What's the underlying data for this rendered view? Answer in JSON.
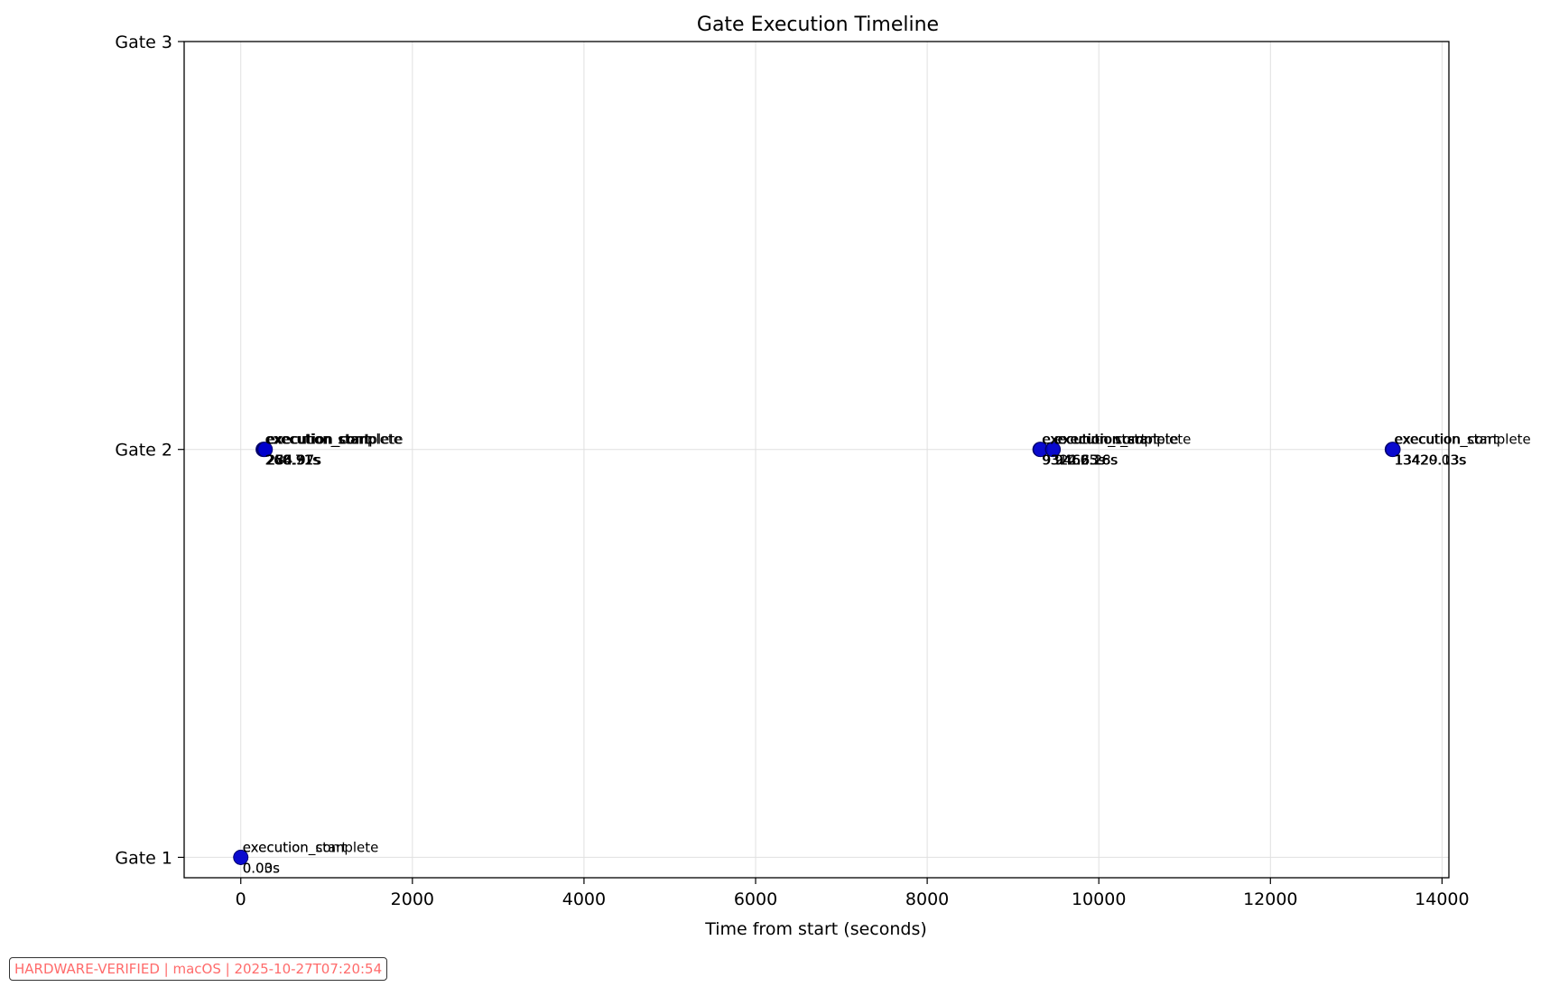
{
  "chart_data": {
    "type": "scatter",
    "title": "Gate Execution Timeline",
    "xlabel": "Time from start (seconds)",
    "ylabel": "",
    "xlim": [
      -660,
      14080
    ],
    "ylim": [
      0.95,
      3.0
    ],
    "xticks": [
      0,
      2000,
      4000,
      6000,
      8000,
      10000,
      12000,
      14000
    ],
    "xtick_labels": [
      "0",
      "2000",
      "4000",
      "6000",
      "8000",
      "10000",
      "12000",
      "14000"
    ],
    "yticks": [
      1,
      2,
      3
    ],
    "ytick_labels": [
      "Gate 1",
      "Gate 2",
      "Gate 3"
    ],
    "grid": true,
    "marker_color": "#0000cc",
    "points": [
      {
        "x": 0.0,
        "y": 1,
        "label": "execution_start",
        "time": "0.00s"
      },
      {
        "x": 0.03,
        "y": 1,
        "label": "execution_complete",
        "time": "0.03s"
      },
      {
        "x": 260.71,
        "y": 2,
        "label": "execution_start",
        "time": "260.71s"
      },
      {
        "x": 268.91,
        "y": 2,
        "label": "execution_complete",
        "time": "268.91s"
      },
      {
        "x": 276.32,
        "y": 2,
        "label": "execution_start",
        "time": "276.32s"
      },
      {
        "x": 284.97,
        "y": 2,
        "label": "execution_complete",
        "time": "284.97s"
      },
      {
        "x": 9314.25,
        "y": 2,
        "label": "execution_start",
        "time": "9314.25s"
      },
      {
        "x": 9322.63,
        "y": 2,
        "label": "execution_complete",
        "time": "9322.63s"
      },
      {
        "x": 9460.16,
        "y": 2,
        "label": "execution_start",
        "time": "9460.16s"
      },
      {
        "x": 9468.28,
        "y": 2,
        "label": "execution_complete",
        "time": "9468.28s"
      },
      {
        "x": 13420.03,
        "y": 2,
        "label": "execution_start",
        "time": "13420.03s"
      },
      {
        "x": 13429.13,
        "y": 2,
        "label": "execution_complete",
        "time": "13429.13s"
      }
    ]
  },
  "footer": {
    "badge": "HARDWARE-VERIFIED | macOS | 2025-10-27T07:20:54"
  }
}
